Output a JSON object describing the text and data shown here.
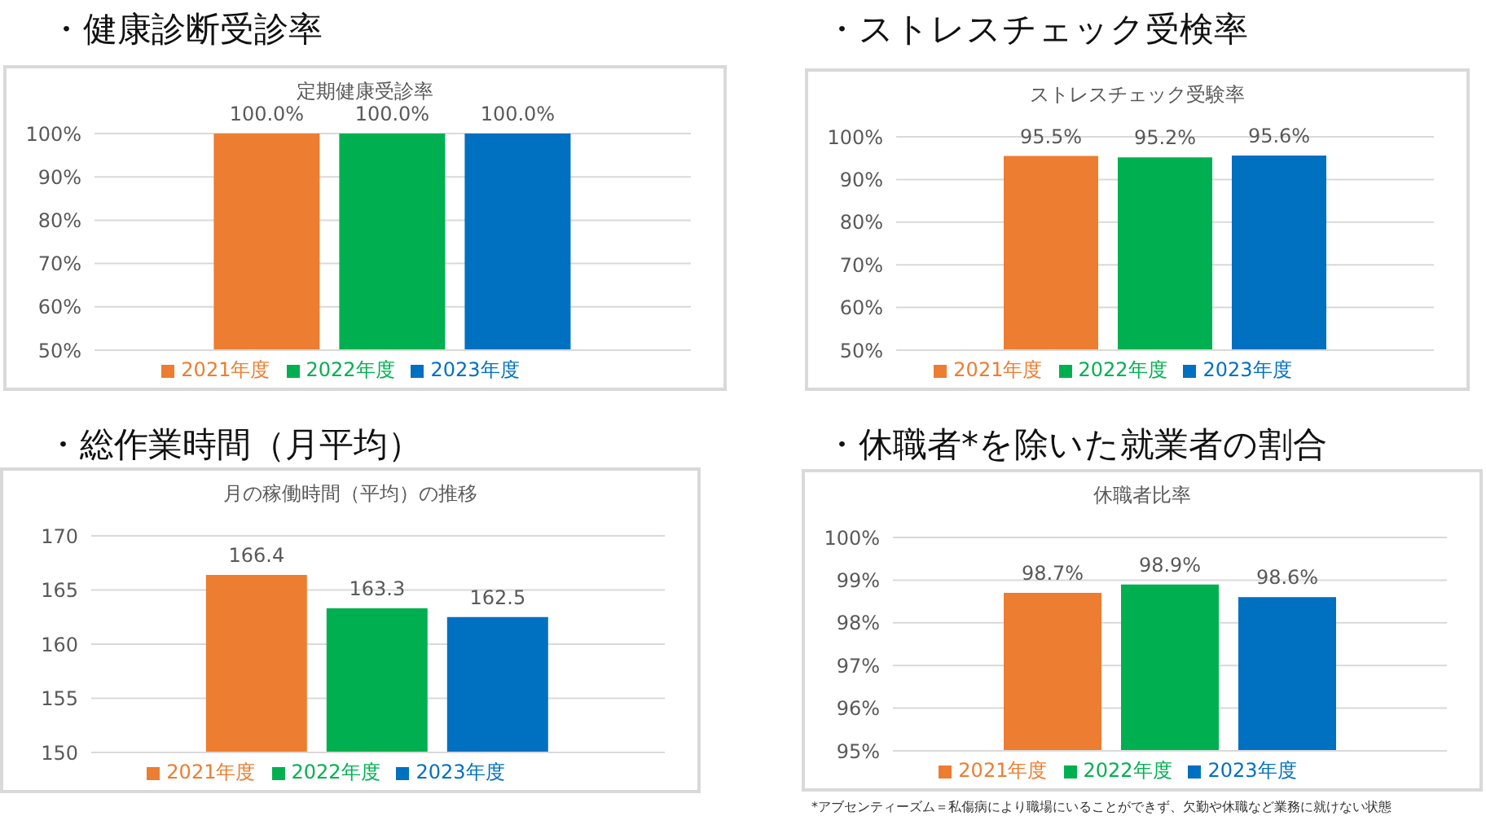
{
  "chart_data": [
    {
      "type": "bar",
      "title": "・健康診断受診率",
      "subtitle": "定期健康受診率",
      "categories": [
        null
      ],
      "series": [
        {
          "name": "2021年度",
          "color": "#ed7d31",
          "values": [
            100.0
          ],
          "value_labels": [
            "100.0%"
          ]
        },
        {
          "name": "2022年度",
          "color": "#00b050",
          "values": [
            100.0
          ],
          "value_labels": [
            "100.0%"
          ]
        },
        {
          "name": "2023年度",
          "color": "#0070c0",
          "values": [
            100.0
          ],
          "value_labels": [
            "100.0%"
          ]
        }
      ],
      "ylim": [
        50,
        100
      ],
      "yticks": [
        {
          "value": 50,
          "label": "50%"
        },
        {
          "value": 60,
          "label": "60%"
        },
        {
          "value": 70,
          "label": "70%"
        },
        {
          "value": 80,
          "label": "80%"
        },
        {
          "value": 90,
          "label": "90%"
        },
        {
          "value": 100,
          "label": "100%"
        }
      ],
      "grid": "y",
      "legend": "bottom"
    },
    {
      "type": "bar",
      "title": "・ストレスチェック受検率",
      "subtitle": "ストレスチェック受験率",
      "categories": [
        null
      ],
      "series": [
        {
          "name": "2021年度",
          "color": "#ed7d31",
          "values": [
            95.5
          ],
          "value_labels": [
            "95.5%"
          ]
        },
        {
          "name": "2022年度",
          "color": "#00b050",
          "values": [
            95.2
          ],
          "value_labels": [
            "95.2%"
          ]
        },
        {
          "name": "2023年度",
          "color": "#0070c0",
          "values": [
            95.6
          ],
          "value_labels": [
            "95.6%"
          ]
        }
      ],
      "ylim": [
        50,
        100
      ],
      "yticks": [
        {
          "value": 50,
          "label": "50%"
        },
        {
          "value": 60,
          "label": "60%"
        },
        {
          "value": 70,
          "label": "70%"
        },
        {
          "value": 80,
          "label": "80%"
        },
        {
          "value": 90,
          "label": "90%"
        },
        {
          "value": 100,
          "label": "100%"
        }
      ],
      "grid": "y",
      "legend": "bottom"
    },
    {
      "type": "bar",
      "title": "・総作業時間（月平均）",
      "subtitle": "月の稼働時間（平均）の推移",
      "categories": [
        null
      ],
      "series": [
        {
          "name": "2021年度",
          "color": "#ed7d31",
          "values": [
            166.4
          ]
        },
        {
          "name": "2022年度",
          "color": "#00b050",
          "values": [
            163.3
          ]
        },
        {
          "name": "2023年度",
          "color": "#0070c0",
          "values": [
            162.5
          ]
        }
      ],
      "data_labels": true,
      "ylim": [
        150,
        170
      ],
      "yticks": [
        150,
        155,
        160,
        165,
        170
      ],
      "grid": "y",
      "legend": "bottom"
    },
    {
      "type": "bar",
      "title": "・休職者*を除いた就業者の割合",
      "subtitle": "休職者比率",
      "categories": [
        null
      ],
      "series": [
        {
          "name": "2021年度",
          "color": "#ed7d31",
          "values": [
            98.7
          ],
          "value_labels": [
            "98.7%"
          ]
        },
        {
          "name": "2022年度",
          "color": "#00b050",
          "values": [
            98.9
          ],
          "value_labels": [
            "98.9%"
          ]
        },
        {
          "name": "2023年度",
          "color": "#0070c0",
          "values": [
            98.6
          ],
          "value_labels": [
            "98.6%"
          ]
        }
      ],
      "ylim": [
        95,
        100
      ],
      "yticks": [
        {
          "value": 95,
          "label": "95%"
        },
        {
          "value": 96,
          "label": "96%"
        },
        {
          "value": 97,
          "label": "97%"
        },
        {
          "value": 98,
          "label": "98%"
        },
        {
          "value": 99,
          "label": "99%"
        },
        {
          "value": 100,
          "label": "100%"
        }
      ],
      "grid": "y",
      "legend": "bottom",
      "annotations": [
        "*アブセンティーズム＝私傷病により職場にいることができず、欠勤や休職など業務に就けない状態"
      ]
    }
  ]
}
